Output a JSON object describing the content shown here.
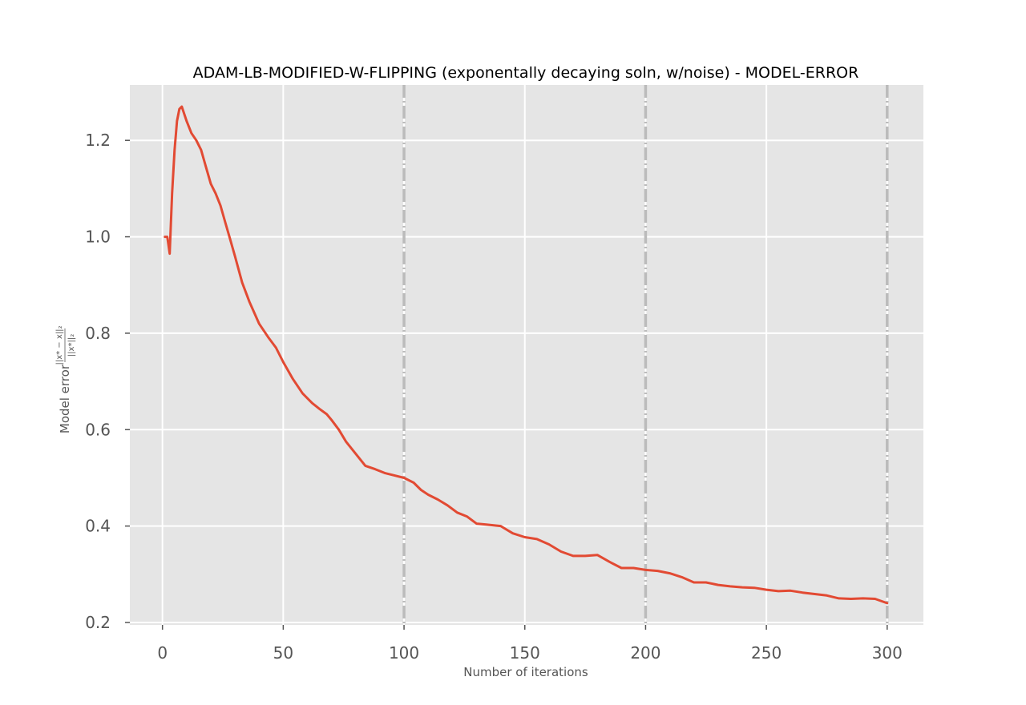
{
  "chart_data": {
    "type": "line",
    "title": "ADAM-LB-MODIFIED-W-FLIPPING (exponentally decaying soln, w/noise) - MODEL-ERROR",
    "xlabel": "Number of iterations",
    "ylabel_prefix": "Model error",
    "ylabel_numerator": "||x* − x||₂",
    "ylabel_denominator": "||x*||₂",
    "xlim": [
      -13.5,
      315
    ],
    "ylim": [
      0.195,
      1.315
    ],
    "x_ticks": [
      0,
      50,
      100,
      150,
      200,
      250,
      300
    ],
    "x_tick_labels": [
      "0",
      "50",
      "100",
      "150",
      "200",
      "250",
      "300"
    ],
    "y_ticks": [
      0.2,
      0.4,
      0.6,
      0.8,
      1.0,
      1.2
    ],
    "y_tick_labels": [
      "0.2",
      "0.4",
      "0.6",
      "0.8",
      "1.0",
      "1.2"
    ],
    "grid": true,
    "vertical_markers": [
      100,
      200,
      300
    ],
    "series": [
      {
        "color": "#e24a33",
        "x": [
          1,
          2,
          3,
          4,
          5,
          6,
          7,
          8,
          10,
          12,
          14,
          16,
          18,
          20,
          22,
          24,
          26,
          28,
          30,
          33,
          36,
          40,
          44,
          47,
          50,
          54,
          58,
          62,
          65,
          68,
          70,
          73,
          76,
          80,
          84,
          88,
          92,
          96,
          100,
          104,
          107,
          110,
          114,
          118,
          122,
          126,
          130,
          134,
          140,
          145,
          150,
          155,
          160,
          165,
          170,
          175,
          180,
          185,
          190,
          195,
          200,
          205,
          210,
          215,
          220,
          225,
          230,
          235,
          240,
          245,
          250,
          255,
          260,
          265,
          270,
          275,
          280,
          285,
          290,
          295,
          300
        ],
        "y": [
          1.0,
          1.0,
          0.965,
          1.09,
          1.18,
          1.24,
          1.265,
          1.27,
          1.24,
          1.215,
          1.2,
          1.18,
          1.145,
          1.11,
          1.09,
          1.065,
          1.03,
          0.995,
          0.96,
          0.905,
          0.865,
          0.82,
          0.79,
          0.77,
          0.74,
          0.705,
          0.675,
          0.655,
          0.643,
          0.632,
          0.62,
          0.6,
          0.575,
          0.55,
          0.525,
          0.518,
          0.51,
          0.505,
          0.5,
          0.49,
          0.475,
          0.465,
          0.455,
          0.443,
          0.428,
          0.42,
          0.405,
          0.403,
          0.4,
          0.385,
          0.377,
          0.373,
          0.362,
          0.347,
          0.338,
          0.338,
          0.34,
          0.326,
          0.313,
          0.313,
          0.309,
          0.307,
          0.302,
          0.294,
          0.283,
          0.283,
          0.278,
          0.275,
          0.273,
          0.272,
          0.268,
          0.265,
          0.266,
          0.262,
          0.259,
          0.256,
          0.25,
          0.249,
          0.25,
          0.249,
          0.24
        ]
      }
    ]
  }
}
